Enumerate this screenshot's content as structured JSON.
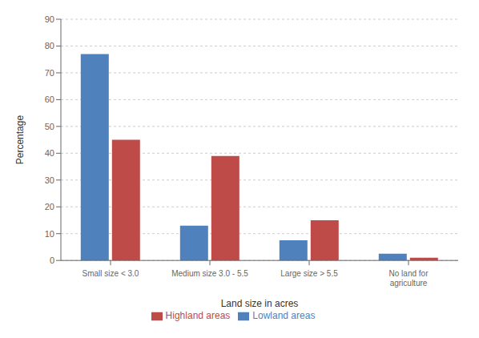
{
  "chart_data": {
    "type": "bar",
    "categories": [
      "Small size < 3.0",
      "Medium size 3.0 - 5.5",
      "Large size > 5.5",
      "No land for\nagriculture"
    ],
    "series": [
      {
        "name": "Lowland areas",
        "color": "#4F81BD",
        "values": [
          77,
          13,
          7.5,
          2.5
        ]
      },
      {
        "name": "Highland areas",
        "color": "#BE4B48",
        "values": [
          45,
          39,
          15,
          1
        ]
      }
    ],
    "xlabel": "Land size in acres",
    "ylabel": "Percentage",
    "ylim": [
      0,
      90
    ],
    "yticks": [
      0,
      10,
      20,
      30,
      40,
      50,
      60,
      70,
      80,
      90
    ],
    "grid": true,
    "legend": "bottom"
  }
}
